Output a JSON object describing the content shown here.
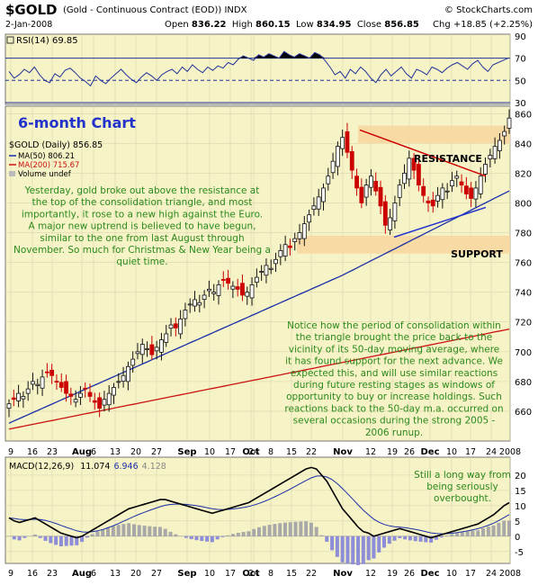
{
  "header": {
    "symbol": "$GOLD",
    "description": "(Gold - Continuous Contract (EOD)) INDX",
    "brand": "© StockCharts.com",
    "date": "2-Jan-2008",
    "open_label": "Open",
    "open": "836.22",
    "high_label": "High",
    "high": "860.15",
    "low_label": "Low",
    "low": "834.95",
    "close_label": "Close",
    "close": "856.85",
    "change": "Chg +18.85 (+2.25%)"
  },
  "rsi_panel": {
    "legend": "RSI(14) 69.85",
    "ticks": [
      "90",
      "70",
      "50",
      "30"
    ]
  },
  "price_panel": {
    "chart_title": "6-month Chart",
    "legend_price": "$GOLD (Daily) 856.85",
    "legend_ma50": "MA(50) 806.21",
    "legend_ma200": "MA(200) 715.67",
    "legend_volume": "Volume undef",
    "resistance_label": "RESISTANCE",
    "support_label": "SUPPORT",
    "annotation_top": "Yesterday, gold broke out above the resistance at the top of the consolidation triangle, and most importantly, it rose to a new high against the Euro. A major new uptrend is believed to have begun, similar to the one from last August through November. So much for Christmas & New Year being a quiet time.",
    "annotation_bottom": "Notice how the period of consolidation within the triangle brought the price back to the vicinity of its 50-day moving average, where it has found support for the next advance. We expected this, and will use similar reactions during future resting stages as windows of opportunity to buy or increase holdings. Such reactions back to the 50-day m.a. occurred on several occasions during the strong 2005 - 2006 runup."
  },
  "macd_panel": {
    "legend_name": "MACD(12,26,9)",
    "legend_macd": "11.074",
    "legend_signal": "6.946",
    "legend_hist": "4.128",
    "annotation": "Still a long way from being seriously overbought.",
    "ticks": [
      "20",
      "15",
      "10",
      "5",
      "0",
      "-5"
    ]
  },
  "x_labels": [
    "9",
    "16",
    "23",
    "Aug",
    "6",
    "13",
    "20",
    "27",
    "Sep",
    "10",
    "17",
    "24",
    "Oct",
    "8",
    "15",
    "22",
    "Nov",
    "12",
    "19",
    "26",
    "Dec",
    "10",
    "17",
    "24",
    "2008"
  ],
  "colors": {
    "panel_bg": "#f6f3c6",
    "up": "#111111",
    "down": "#cc0000",
    "ma50": "#1a2fa8",
    "ma200": "#cc1111",
    "annot": "#2c8a1c",
    "title": "#2233cc",
    "band": "#f7d7a0",
    "trend": "#cc0000",
    "support_line": "#2233cc"
  },
  "chart_data": [
    {
      "type": "line",
      "name": "RSI(14)",
      "ylim": [
        30,
        90
      ],
      "y_ticks": [
        90,
        70,
        50,
        30
      ],
      "last": 69.85
    },
    {
      "type": "candlestick",
      "title": "6-month Chart",
      "ylim": [
        640,
        865
      ],
      "y_ticks": [
        860,
        840,
        820,
        800,
        780,
        760,
        740,
        720,
        700,
        680,
        660
      ],
      "ohlc_last": {
        "open": 836.22,
        "high": 860.15,
        "low": 834.95,
        "close": 856.85
      },
      "ma50_last": 806.21,
      "ma200_last": 715.67,
      "resistance_band": [
        840,
        852
      ],
      "support_band": [
        766,
        778
      ]
    },
    {
      "type": "line",
      "name": "MACD(12,26,9)",
      "ylim": [
        -8,
        25
      ],
      "y_ticks": [
        20,
        15,
        10,
        5,
        0,
        -5
      ],
      "macd": 11.074,
      "signal": 6.946,
      "histogram": 4.128
    }
  ]
}
